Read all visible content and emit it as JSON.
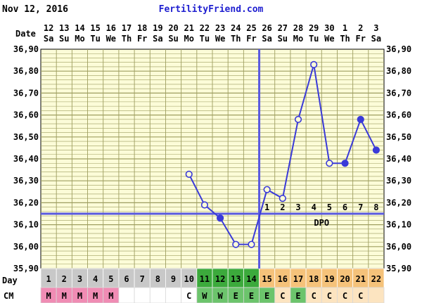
{
  "header": {
    "date_text": "Nov 12, 2016",
    "site_text": "FertilityFriend.com"
  },
  "row_labels": {
    "date": "Date",
    "day": "Day",
    "cm": "CM"
  },
  "colors": {
    "background": "#fcfcd8",
    "grid": "#9e9e60",
    "line": "#3a3ad8",
    "coverline": "#5a5ae0",
    "site_text": "#1f1fd0",
    "day_grey": "#c8c8c8",
    "day_green": "#3caa3c",
    "day_orange": "#f5c27a",
    "cm_pink": "#f08cb4",
    "cm_green": "#6cc46c",
    "cm_orange": "#fce4c0"
  },
  "chart_data": {
    "type": "line",
    "ylabel": "",
    "xlabel": "",
    "ylim": [
      35.9,
      36.9
    ],
    "yticks": [
      "35,90",
      "36,00",
      "36,10",
      "36,20",
      "36,30",
      "36,40",
      "36,50",
      "36,60",
      "36,70",
      "36,80",
      "36,90"
    ],
    "date_numbers": [
      "12",
      "13",
      "14",
      "15",
      "16",
      "17",
      "18",
      "19",
      "20",
      "21",
      "22",
      "23",
      "24",
      "25",
      "26",
      "27",
      "28",
      "29",
      "30",
      "1",
      "2",
      "3"
    ],
    "weekdays": [
      "Sa",
      "Su",
      "Mo",
      "Tu",
      "We",
      "Th",
      "Fr",
      "Sa",
      "Su",
      "Mo",
      "Tu",
      "We",
      "Th",
      "Fr",
      "Sa",
      "Su",
      "Mo",
      "Tu",
      "We",
      "Th",
      "Fr",
      "Sa"
    ],
    "cycle_days": [
      "1",
      "2",
      "3",
      "4",
      "5",
      "6",
      "7",
      "8",
      "9",
      "10",
      "11",
      "12",
      "13",
      "14",
      "15",
      "16",
      "17",
      "18",
      "19",
      "20",
      "21",
      "22"
    ],
    "cm_values": [
      "M",
      "M",
      "M",
      "M",
      "M",
      "",
      "",
      "",
      "",
      "C",
      "W",
      "W",
      "E",
      "E",
      "E",
      "C",
      "E",
      "C",
      "C",
      "C",
      "C",
      ""
    ],
    "day_colors": [
      "grey",
      "grey",
      "grey",
      "grey",
      "grey",
      "grey",
      "grey",
      "grey",
      "grey",
      "grey",
      "green",
      "green",
      "green",
      "green",
      "orange",
      "orange",
      "orange",
      "orange",
      "orange",
      "orange",
      "orange",
      "orange"
    ],
    "cm_colors": [
      "pink",
      "pink",
      "pink",
      "pink",
      "pink",
      "",
      "",
      "",
      "",
      "",
      "green",
      "green",
      "green",
      "green",
      "green",
      "",
      "green",
      "",
      "",
      "",
      "",
      ""
    ],
    "temperatures": [
      null,
      null,
      null,
      null,
      null,
      null,
      null,
      null,
      null,
      36.33,
      36.19,
      36.13,
      36.01,
      36.01,
      36.26,
      36.22,
      36.58,
      36.83,
      36.38,
      36.38,
      36.58,
      36.44
    ],
    "filled": [
      false,
      false,
      false,
      false,
      false,
      false,
      false,
      false,
      false,
      false,
      false,
      true,
      false,
      false,
      false,
      false,
      false,
      false,
      false,
      true,
      true,
      true
    ],
    "coverline": 36.15,
    "ovulation_day_index": 13,
    "dpo_labels": [
      "1",
      "2",
      "3",
      "4",
      "5",
      "6",
      "7",
      "8"
    ],
    "dpo_text": "DPO"
  }
}
